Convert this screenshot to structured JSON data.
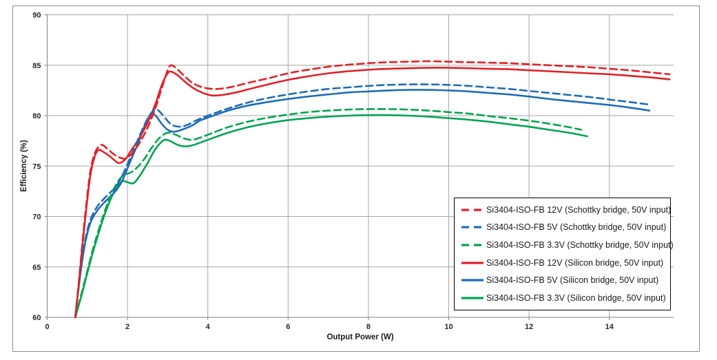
{
  "figure": {
    "x_axis_title": "Output Power (W)",
    "y_axis_title": "Efficiency (%)"
  },
  "colors": {
    "red": "#e02127",
    "blue": "#1f6cb4",
    "green": "#00a350",
    "gridline": "#a6a6a6",
    "axis": "#808080",
    "frame_border": "#8c8c8c",
    "legend_border": "#000000",
    "tick_text": "#262626"
  },
  "chart_data": {
    "type": "line",
    "title": "",
    "xlabel": "Output Power (W)",
    "ylabel": "Efficiency (%)",
    "xlim": [
      0,
      15.6
    ],
    "ylim": [
      60,
      90
    ],
    "x_ticks": [
      0,
      2,
      4,
      6,
      8,
      10,
      12,
      14
    ],
    "y_ticks": [
      60,
      65,
      70,
      75,
      80,
      85,
      90
    ],
    "grid": true,
    "legend_position": "inside-bottom-right",
    "series": [
      {
        "name": "Si3404-ISO-FB 12V (Schottky bridge, 50V input)",
        "color": "#e02127",
        "dash": true,
        "points": [
          [
            0.7,
            60
          ],
          [
            0.78,
            63.2
          ],
          [
            0.88,
            67.5
          ],
          [
            0.98,
            71.4
          ],
          [
            1.08,
            74.6
          ],
          [
            1.2,
            76.4
          ],
          [
            1.35,
            77.1
          ],
          [
            1.5,
            76.7
          ],
          [
            1.65,
            76.2
          ],
          [
            1.8,
            75.85
          ],
          [
            1.95,
            75.75
          ],
          [
            2.1,
            76.2
          ],
          [
            2.3,
            77.3
          ],
          [
            2.5,
            78.8
          ],
          [
            2.7,
            80.8
          ],
          [
            2.85,
            82.7
          ],
          [
            3.0,
            84.5
          ],
          [
            3.08,
            85.0
          ],
          [
            3.2,
            84.75
          ],
          [
            3.4,
            84.0
          ],
          [
            3.6,
            83.3
          ],
          [
            3.8,
            82.9
          ],
          [
            4.0,
            82.7
          ],
          [
            4.25,
            82.65
          ],
          [
            4.6,
            82.85
          ],
          [
            5.0,
            83.25
          ],
          [
            5.5,
            83.7
          ],
          [
            6.0,
            84.2
          ],
          [
            6.5,
            84.55
          ],
          [
            7.0,
            84.85
          ],
          [
            7.5,
            85.05
          ],
          [
            8.0,
            85.2
          ],
          [
            8.5,
            85.3
          ],
          [
            9.0,
            85.35
          ],
          [
            9.5,
            85.4
          ],
          [
            10.0,
            85.35
          ],
          [
            10.5,
            85.3
          ],
          [
            11.0,
            85.25
          ],
          [
            11.5,
            85.2
          ],
          [
            12.0,
            85.1
          ],
          [
            12.5,
            85.0
          ],
          [
            13.0,
            84.9
          ],
          [
            13.5,
            84.8
          ],
          [
            14.0,
            84.65
          ],
          [
            14.5,
            84.5
          ],
          [
            15.0,
            84.3
          ],
          [
            15.5,
            84.1
          ]
        ]
      },
      {
        "name": "Si3404-ISO-FB 5V (Schottky bridge, 50V input)",
        "color": "#1f6cb4",
        "dash": true,
        "points": [
          [
            0.7,
            60
          ],
          [
            0.78,
            63.0
          ],
          [
            0.88,
            66.1
          ],
          [
            0.98,
            68.3
          ],
          [
            1.1,
            69.9
          ],
          [
            1.25,
            71.0
          ],
          [
            1.4,
            71.7
          ],
          [
            1.55,
            72.3
          ],
          [
            1.7,
            72.9
          ],
          [
            1.85,
            73.9
          ],
          [
            2.0,
            75.2
          ],
          [
            2.15,
            76.6
          ],
          [
            2.3,
            78.0
          ],
          [
            2.5,
            79.7
          ],
          [
            2.68,
            80.6
          ],
          [
            2.8,
            80.4
          ],
          [
            2.95,
            79.7
          ],
          [
            3.1,
            79.1
          ],
          [
            3.3,
            78.9
          ],
          [
            3.5,
            79.1
          ],
          [
            3.75,
            79.6
          ],
          [
            4.0,
            80.0
          ],
          [
            4.5,
            80.7
          ],
          [
            5.0,
            81.3
          ],
          [
            5.5,
            81.75
          ],
          [
            6.0,
            82.1
          ],
          [
            6.5,
            82.4
          ],
          [
            7.0,
            82.65
          ],
          [
            7.5,
            82.8
          ],
          [
            8.0,
            82.95
          ],
          [
            8.5,
            83.05
          ],
          [
            9.0,
            83.1
          ],
          [
            9.5,
            83.1
          ],
          [
            10.0,
            83.05
          ],
          [
            10.5,
            82.95
          ],
          [
            11.0,
            82.8
          ],
          [
            11.5,
            82.65
          ],
          [
            12.0,
            82.45
          ],
          [
            12.5,
            82.25
          ],
          [
            13.0,
            82.05
          ],
          [
            13.5,
            81.85
          ],
          [
            14.0,
            81.6
          ],
          [
            14.5,
            81.35
          ],
          [
            15.0,
            81.1
          ]
        ]
      },
      {
        "name": "Si3404-ISO-FB 3.3V (Schottky bridge, 50V input)",
        "color": "#00a350",
        "dash": true,
        "points": [
          [
            0.7,
            60
          ],
          [
            0.85,
            62.3
          ],
          [
            1.0,
            64.6
          ],
          [
            1.15,
            66.9
          ],
          [
            1.3,
            68.9
          ],
          [
            1.45,
            70.7
          ],
          [
            1.6,
            72.2
          ],
          [
            1.75,
            73.4
          ],
          [
            1.9,
            74.1
          ],
          [
            2.05,
            74.3
          ],
          [
            2.2,
            74.7
          ],
          [
            2.4,
            75.6
          ],
          [
            2.6,
            76.8
          ],
          [
            2.8,
            77.8
          ],
          [
            3.0,
            78.3
          ],
          [
            3.2,
            78.1
          ],
          [
            3.4,
            77.75
          ],
          [
            3.6,
            77.6
          ],
          [
            3.8,
            77.8
          ],
          [
            4.0,
            78.1
          ],
          [
            4.5,
            78.85
          ],
          [
            5.0,
            79.4
          ],
          [
            5.5,
            79.8
          ],
          [
            6.0,
            80.1
          ],
          [
            6.5,
            80.35
          ],
          [
            7.0,
            80.5
          ],
          [
            7.5,
            80.6
          ],
          [
            8.0,
            80.65
          ],
          [
            8.5,
            80.65
          ],
          [
            9.0,
            80.6
          ],
          [
            9.5,
            80.5
          ],
          [
            10.0,
            80.35
          ],
          [
            10.5,
            80.2
          ],
          [
            11.0,
            79.95
          ],
          [
            11.5,
            79.75
          ],
          [
            12.0,
            79.5
          ],
          [
            12.5,
            79.2
          ],
          [
            13.0,
            78.85
          ],
          [
            13.3,
            78.6
          ]
        ]
      },
      {
        "name": "Si3404-ISO-FB 12V (Silicon bridge, 50V input)",
        "color": "#e02127",
        "dash": false,
        "points": [
          [
            0.7,
            60
          ],
          [
            0.78,
            63.0
          ],
          [
            0.88,
            67.2
          ],
          [
            0.98,
            71.0
          ],
          [
            1.08,
            74.2
          ],
          [
            1.18,
            75.9
          ],
          [
            1.28,
            76.6
          ],
          [
            1.4,
            76.4
          ],
          [
            1.55,
            76.0
          ],
          [
            1.7,
            75.5
          ],
          [
            1.8,
            75.3
          ],
          [
            1.95,
            75.7
          ],
          [
            2.1,
            76.6
          ],
          [
            2.3,
            77.8
          ],
          [
            2.5,
            79.3
          ],
          [
            2.7,
            81.2
          ],
          [
            2.85,
            83.0
          ],
          [
            3.0,
            84.2
          ],
          [
            3.1,
            84.35
          ],
          [
            3.25,
            84.0
          ],
          [
            3.45,
            83.3
          ],
          [
            3.65,
            82.7
          ],
          [
            3.85,
            82.3
          ],
          [
            4.1,
            82.0
          ],
          [
            4.35,
            82.05
          ],
          [
            4.7,
            82.3
          ],
          [
            5.0,
            82.6
          ],
          [
            5.5,
            83.1
          ],
          [
            6.0,
            83.55
          ],
          [
            6.5,
            83.9
          ],
          [
            7.0,
            84.2
          ],
          [
            7.5,
            84.4
          ],
          [
            8.0,
            84.55
          ],
          [
            8.5,
            84.65
          ],
          [
            9.0,
            84.7
          ],
          [
            9.5,
            84.75
          ],
          [
            10.0,
            84.75
          ],
          [
            10.5,
            84.7
          ],
          [
            11.0,
            84.65
          ],
          [
            11.5,
            84.6
          ],
          [
            12.0,
            84.5
          ],
          [
            12.5,
            84.4
          ],
          [
            13.0,
            84.3
          ],
          [
            13.5,
            84.2
          ],
          [
            14.0,
            84.1
          ],
          [
            14.5,
            83.95
          ],
          [
            15.0,
            83.8
          ],
          [
            15.5,
            83.6
          ]
        ]
      },
      {
        "name": "Si3404-ISO-FB 5V (Silicon bridge, 50V input)",
        "color": "#1f6cb4",
        "dash": false,
        "points": [
          [
            0.7,
            60
          ],
          [
            0.78,
            62.8
          ],
          [
            0.88,
            65.8
          ],
          [
            0.98,
            68.0
          ],
          [
            1.1,
            69.6
          ],
          [
            1.25,
            70.6
          ],
          [
            1.4,
            71.3
          ],
          [
            1.55,
            71.9
          ],
          [
            1.7,
            72.5
          ],
          [
            1.85,
            73.4
          ],
          [
            2.0,
            74.8
          ],
          [
            2.15,
            76.2
          ],
          [
            2.3,
            77.6
          ],
          [
            2.45,
            79.2
          ],
          [
            2.58,
            80.1
          ],
          [
            2.7,
            80.0
          ],
          [
            2.85,
            79.2
          ],
          [
            3.0,
            78.6
          ],
          [
            3.15,
            78.4
          ],
          [
            3.35,
            78.6
          ],
          [
            3.6,
            79.0
          ],
          [
            3.8,
            79.5
          ],
          [
            4.0,
            79.8
          ],
          [
            4.5,
            80.5
          ],
          [
            5.0,
            81.0
          ],
          [
            5.5,
            81.35
          ],
          [
            6.0,
            81.65
          ],
          [
            6.5,
            81.9
          ],
          [
            7.0,
            82.1
          ],
          [
            7.5,
            82.3
          ],
          [
            8.0,
            82.4
          ],
          [
            8.5,
            82.5
          ],
          [
            9.0,
            82.55
          ],
          [
            9.5,
            82.55
          ],
          [
            10.0,
            82.5
          ],
          [
            10.5,
            82.4
          ],
          [
            11.0,
            82.25
          ],
          [
            11.5,
            82.1
          ],
          [
            12.0,
            81.9
          ],
          [
            12.5,
            81.65
          ],
          [
            13.0,
            81.45
          ],
          [
            13.5,
            81.25
          ],
          [
            14.0,
            81.05
          ],
          [
            14.5,
            80.8
          ],
          [
            15.0,
            80.5
          ]
        ]
      },
      {
        "name": "Si3404-ISO-FB 3.3V (Silicon bridge, 50V input)",
        "color": "#00a350",
        "dash": false,
        "points": [
          [
            0.7,
            60
          ],
          [
            0.85,
            62.1
          ],
          [
            1.0,
            64.4
          ],
          [
            1.15,
            66.6
          ],
          [
            1.3,
            68.6
          ],
          [
            1.45,
            70.4
          ],
          [
            1.6,
            71.9
          ],
          [
            1.75,
            73.0
          ],
          [
            1.88,
            73.5
          ],
          [
            2.0,
            73.4
          ],
          [
            2.15,
            73.3
          ],
          [
            2.3,
            74.0
          ],
          [
            2.5,
            75.3
          ],
          [
            2.7,
            76.7
          ],
          [
            2.9,
            77.55
          ],
          [
            3.05,
            77.5
          ],
          [
            3.25,
            77.1
          ],
          [
            3.45,
            76.95
          ],
          [
            3.65,
            77.1
          ],
          [
            4.0,
            77.6
          ],
          [
            4.5,
            78.3
          ],
          [
            5.0,
            78.85
          ],
          [
            5.5,
            79.25
          ],
          [
            6.0,
            79.55
          ],
          [
            6.5,
            79.75
          ],
          [
            7.0,
            79.9
          ],
          [
            7.5,
            80.0
          ],
          [
            8.0,
            80.05
          ],
          [
            8.5,
            80.05
          ],
          [
            9.0,
            80.0
          ],
          [
            9.5,
            79.9
          ],
          [
            10.0,
            79.75
          ],
          [
            10.5,
            79.6
          ],
          [
            11.0,
            79.4
          ],
          [
            11.5,
            79.15
          ],
          [
            12.0,
            78.9
          ],
          [
            12.5,
            78.6
          ],
          [
            13.0,
            78.3
          ],
          [
            13.45,
            77.95
          ]
        ]
      }
    ]
  }
}
